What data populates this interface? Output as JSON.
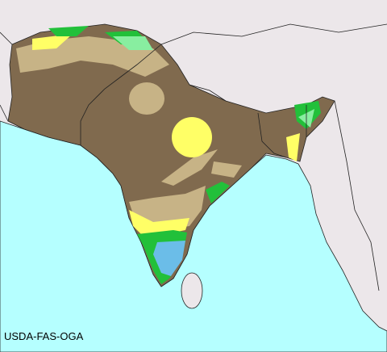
{
  "credit": "USDA-FAS-OGA"
}
